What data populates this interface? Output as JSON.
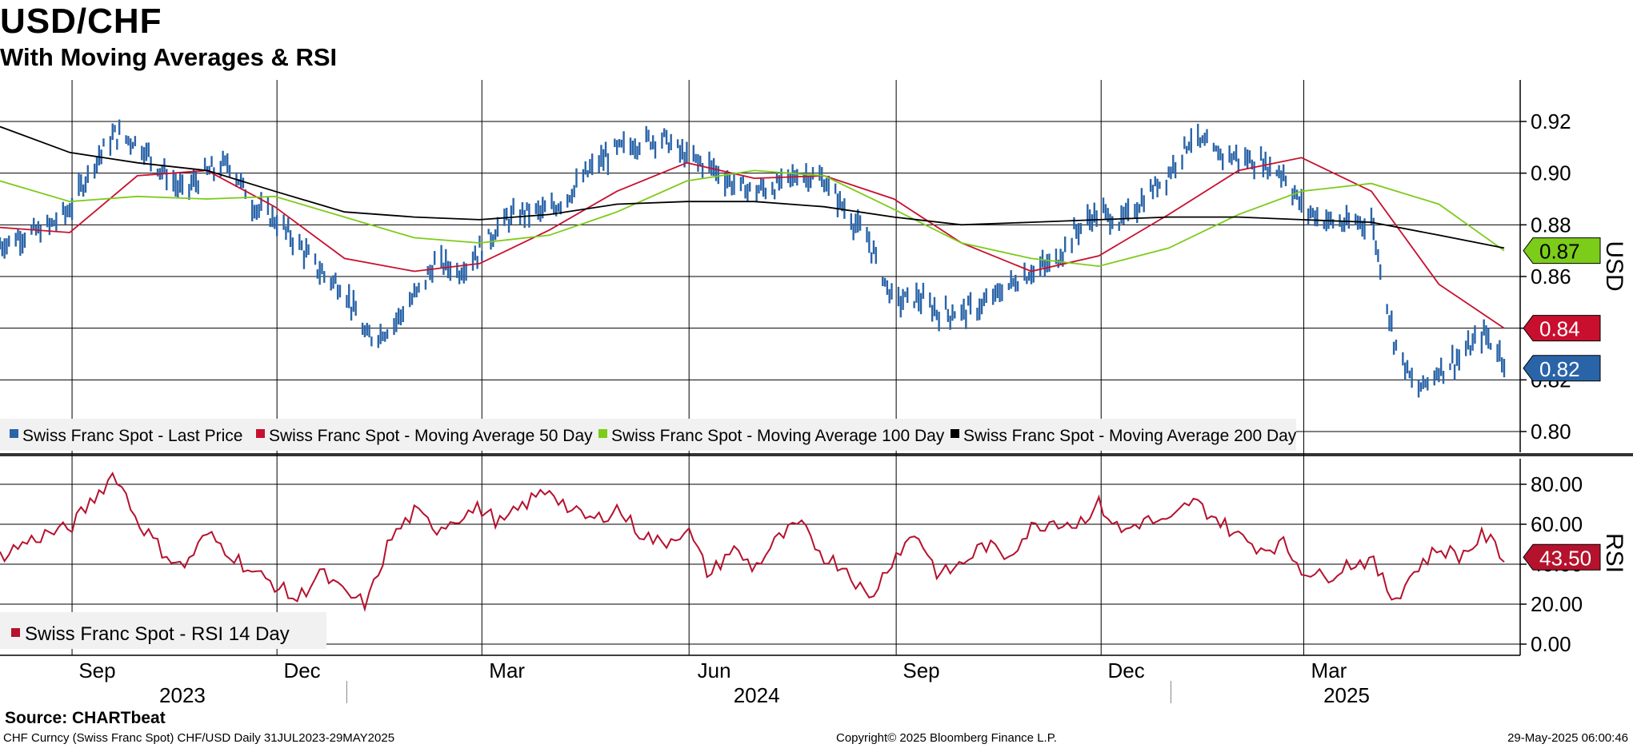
{
  "header": {
    "title": "USD/CHF",
    "subtitle": "With Moving Averages & RSI"
  },
  "footer": {
    "source": "Source: CHARTbeat",
    "left": "CHF Curncy (Swiss Franc Spot) CHF/USD  Daily 31JUL2023-29MAY2025",
    "center": "Copyright© 2025 Bloomberg Finance L.P.",
    "right": "29-May-2025 06:00:46"
  },
  "colors": {
    "price": "#2a64a8",
    "ma50": "#c8102e",
    "ma100": "#7ccc1a",
    "ma200": "#000000",
    "rsi": "#b5122e",
    "grid": "#000000"
  },
  "x_axis": {
    "months": [
      "Sep",
      "Dec",
      "Mar",
      "Jun",
      "Sep",
      "Dec",
      "Mar"
    ],
    "years": [
      "2023",
      "2024",
      "2025"
    ]
  },
  "chart_data": [
    {
      "type": "line",
      "name": "price-panel",
      "ylabel": "USD",
      "ylim": [
        0.79,
        0.93
      ],
      "yticks": [
        "0.80",
        "0.82",
        "0.84",
        "0.86",
        "0.88",
        "0.90",
        "0.92"
      ],
      "x_range": [
        "2023-07-31",
        "2025-05-29"
      ],
      "legend": [
        "Swiss Franc Spot - Last Price",
        "Swiss Franc Spot - Moving Average 50 Day",
        "Swiss Franc Spot - Moving Average 100 Day",
        "Swiss Franc Spot - Moving Average 200 Day"
      ],
      "end_labels": {
        "ma100": "0.87",
        "ma50": "0.84",
        "price": "0.82"
      },
      "series": [
        {
          "name": "Swiss Franc Spot - Last Price",
          "type": "ohlc-bars",
          "x": [
            "2023-07-31",
            "2023-08-10",
            "2023-08-20",
            "2023-08-31",
            "2023-09-10",
            "2023-09-20",
            "2023-09-30",
            "2023-10-10",
            "2023-10-20",
            "2023-10-31",
            "2023-11-10",
            "2023-11-20",
            "2023-11-30",
            "2023-12-10",
            "2023-12-20",
            "2023-12-31",
            "2024-01-10",
            "2024-01-20",
            "2024-01-31",
            "2024-02-10",
            "2024-02-20",
            "2024-02-29",
            "2024-03-10",
            "2024-03-20",
            "2024-03-31",
            "2024-04-10",
            "2024-04-20",
            "2024-04-30",
            "2024-05-10",
            "2024-05-20",
            "2024-05-31",
            "2024-06-10",
            "2024-06-20",
            "2024-06-30",
            "2024-07-10",
            "2024-07-20",
            "2024-07-31",
            "2024-08-10",
            "2024-08-20",
            "2024-08-31",
            "2024-09-10",
            "2024-09-20",
            "2024-09-30",
            "2024-10-10",
            "2024-10-20",
            "2024-10-31",
            "2024-11-10",
            "2024-11-20",
            "2024-11-30",
            "2024-12-10",
            "2024-12-20",
            "2024-12-31",
            "2025-01-10",
            "2025-01-20",
            "2025-01-31",
            "2025-02-10",
            "2025-02-20",
            "2025-02-28",
            "2025-03-10",
            "2025-03-20",
            "2025-03-31",
            "2025-04-10",
            "2025-04-20",
            "2025-04-30",
            "2025-05-10",
            "2025-05-20",
            "2025-05-29"
          ],
          "values": [
            0.872,
            0.876,
            0.878,
            0.886,
            0.903,
            0.915,
            0.912,
            0.902,
            0.893,
            0.9,
            0.904,
            0.888,
            0.882,
            0.873,
            0.862,
            0.855,
            0.836,
            0.84,
            0.852,
            0.866,
            0.862,
            0.87,
            0.881,
            0.885,
            0.885,
            0.893,
            0.903,
            0.909,
            0.912,
            0.914,
            0.906,
            0.903,
            0.896,
            0.893,
            0.895,
            0.9,
            0.897,
            0.885,
            0.873,
            0.85,
            0.852,
            0.846,
            0.846,
            0.849,
            0.856,
            0.862,
            0.865,
            0.878,
            0.885,
            0.881,
            0.89,
            0.9,
            0.914,
            0.908,
            0.906,
            0.904,
            0.9,
            0.887,
            0.882,
            0.88,
            0.882,
            0.836,
            0.815,
            0.824,
            0.829,
            0.838,
            0.828
          ]
        },
        {
          "name": "Swiss Franc Spot - Moving Average 50 Day",
          "x": [
            "2023-07-31",
            "2023-08-31",
            "2023-09-30",
            "2023-10-31",
            "2023-11-30",
            "2023-12-31",
            "2024-01-31",
            "2024-02-29",
            "2024-03-31",
            "2024-04-30",
            "2024-05-31",
            "2024-06-30",
            "2024-07-31",
            "2024-08-31",
            "2024-09-30",
            "2024-10-31",
            "2024-11-30",
            "2024-12-31",
            "2025-01-31",
            "2025-02-28",
            "2025-03-31",
            "2025-04-30",
            "2025-05-29"
          ],
          "values": [
            0.879,
            0.877,
            0.899,
            0.901,
            0.887,
            0.867,
            0.862,
            0.865,
            0.878,
            0.893,
            0.904,
            0.898,
            0.899,
            0.89,
            0.873,
            0.862,
            0.868,
            0.884,
            0.901,
            0.906,
            0.893,
            0.857,
            0.84
          ]
        },
        {
          "name": "Swiss Franc Spot - Moving Average 100 Day",
          "x": [
            "2023-07-31",
            "2023-08-31",
            "2023-09-30",
            "2023-10-31",
            "2023-11-30",
            "2023-12-31",
            "2024-01-31",
            "2024-02-29",
            "2024-03-31",
            "2024-04-30",
            "2024-05-31",
            "2024-06-30",
            "2024-07-31",
            "2024-08-31",
            "2024-09-30",
            "2024-10-31",
            "2024-11-30",
            "2024-12-31",
            "2025-01-31",
            "2025-02-28",
            "2025-03-31",
            "2025-04-30",
            "2025-05-29"
          ],
          "values": [
            0.897,
            0.889,
            0.891,
            0.89,
            0.891,
            0.883,
            0.875,
            0.873,
            0.876,
            0.885,
            0.897,
            0.901,
            0.899,
            0.886,
            0.873,
            0.867,
            0.864,
            0.871,
            0.884,
            0.893,
            0.896,
            0.888,
            0.87
          ]
        },
        {
          "name": "Swiss Franc Spot - Moving Average 200 Day",
          "x": [
            "2023-07-31",
            "2023-08-31",
            "2023-09-30",
            "2023-10-31",
            "2023-11-30",
            "2023-12-31",
            "2024-01-31",
            "2024-02-29",
            "2024-03-31",
            "2024-04-30",
            "2024-05-31",
            "2024-06-30",
            "2024-07-31",
            "2024-08-31",
            "2024-09-30",
            "2024-10-31",
            "2024-11-30",
            "2024-12-31",
            "2025-01-31",
            "2025-02-28",
            "2025-03-31",
            "2025-04-30",
            "2025-05-29"
          ],
          "values": [
            0.918,
            0.908,
            0.904,
            0.901,
            0.893,
            0.885,
            0.883,
            0.882,
            0.884,
            0.888,
            0.889,
            0.889,
            0.887,
            0.883,
            0.88,
            0.881,
            0.882,
            0.883,
            0.883,
            0.882,
            0.881,
            0.876,
            0.871
          ]
        }
      ]
    },
    {
      "type": "line",
      "name": "rsi-panel",
      "ylabel": "RSI",
      "ylim": [
        -2,
        93
      ],
      "yticks": [
        "0.00",
        "20.00",
        "40.00",
        "60.00",
        "80.00"
      ],
      "x_range": [
        "2023-07-31",
        "2025-05-29"
      ],
      "legend": [
        "Swiss Franc Spot - RSI 14 Day"
      ],
      "end_label": "43.50",
      "series": [
        {
          "name": "Swiss Franc Spot - RSI 14 Day",
          "x": [
            "2023-07-31",
            "2023-08-10",
            "2023-08-20",
            "2023-08-31",
            "2023-09-10",
            "2023-09-20",
            "2023-09-30",
            "2023-10-10",
            "2023-10-20",
            "2023-10-31",
            "2023-11-10",
            "2023-11-20",
            "2023-11-30",
            "2023-12-10",
            "2023-12-20",
            "2023-12-31",
            "2024-01-10",
            "2024-01-20",
            "2024-01-31",
            "2024-02-10",
            "2024-02-20",
            "2024-02-29",
            "2024-03-10",
            "2024-03-20",
            "2024-03-31",
            "2024-04-10",
            "2024-04-20",
            "2024-04-30",
            "2024-05-10",
            "2024-05-20",
            "2024-05-31",
            "2024-06-10",
            "2024-06-20",
            "2024-06-30",
            "2024-07-10",
            "2024-07-20",
            "2024-07-31",
            "2024-08-10",
            "2024-08-20",
            "2024-08-31",
            "2024-09-10",
            "2024-09-20",
            "2024-09-30",
            "2024-10-10",
            "2024-10-20",
            "2024-10-31",
            "2024-11-10",
            "2024-11-20",
            "2024-11-30",
            "2024-12-10",
            "2024-12-20",
            "2024-12-31",
            "2025-01-10",
            "2025-01-20",
            "2025-01-31",
            "2025-02-10",
            "2025-02-20",
            "2025-02-28",
            "2025-03-10",
            "2025-03-20",
            "2025-03-31",
            "2025-04-10",
            "2025-04-20",
            "2025-04-30",
            "2025-05-10",
            "2025-05-20",
            "2025-05-29"
          ],
          "values": [
            44,
            50,
            55,
            58,
            72,
            86,
            62,
            48,
            38,
            55,
            46,
            36,
            30,
            22,
            36,
            25,
            20,
            52,
            66,
            58,
            64,
            68,
            60,
            70,
            78,
            66,
            62,
            68,
            56,
            50,
            58,
            34,
            48,
            38,
            52,
            60,
            44,
            38,
            22,
            44,
            56,
            34,
            40,
            50,
            44,
            58,
            62,
            60,
            70,
            56,
            62,
            60,
            72,
            64,
            54,
            48,
            50,
            38,
            33,
            40,
            42,
            22,
            38,
            48,
            44,
            55,
            43.5
          ]
        }
      ]
    }
  ]
}
